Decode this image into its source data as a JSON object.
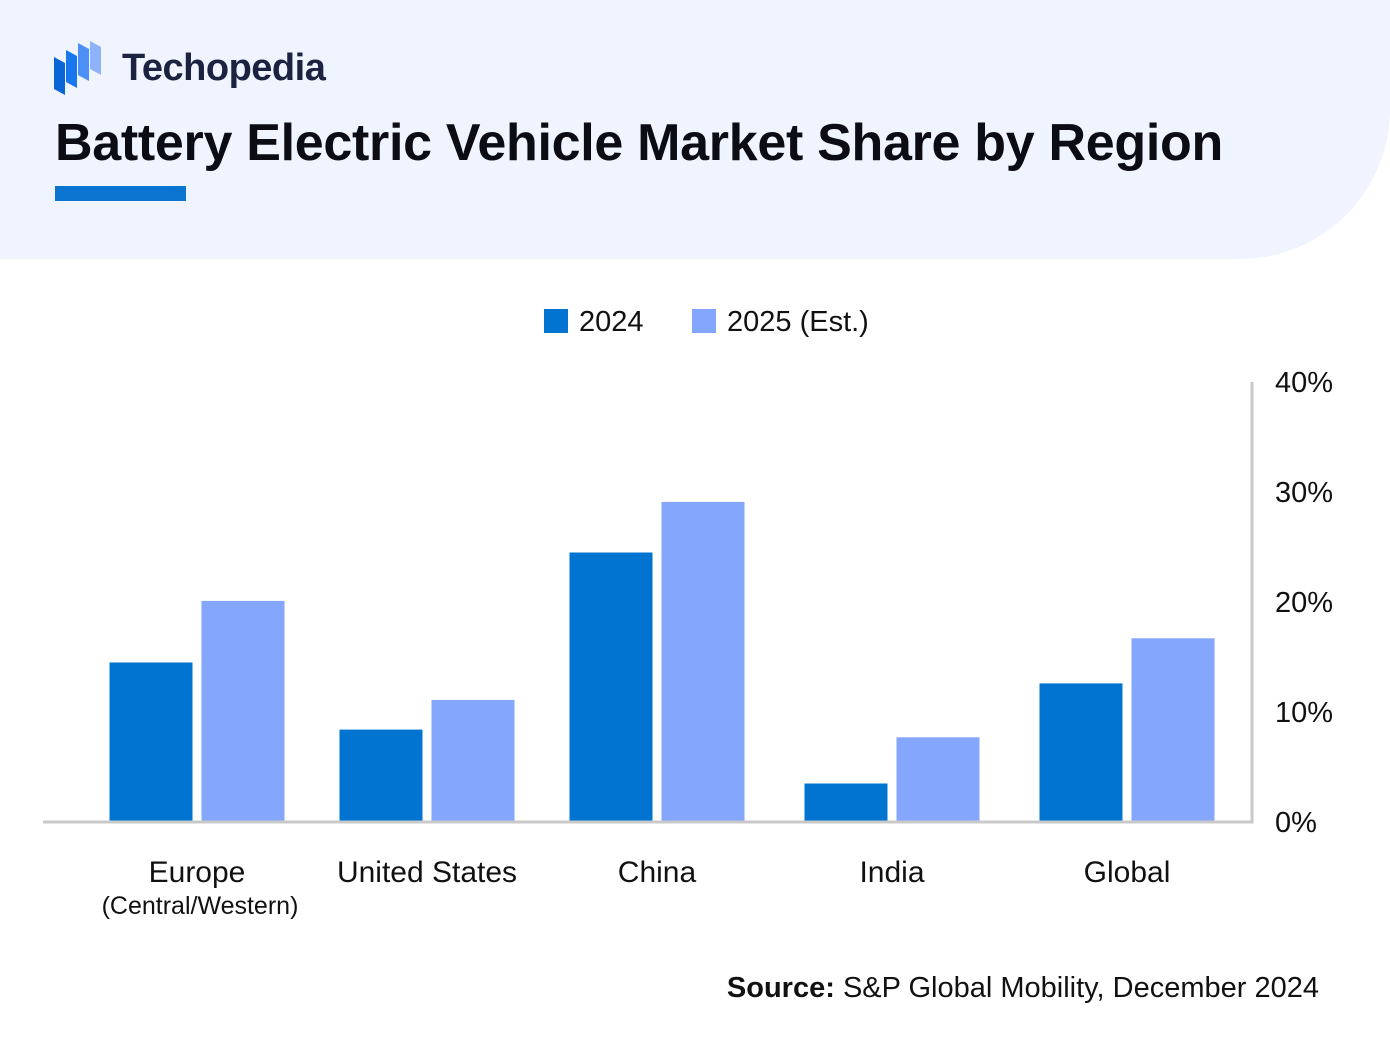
{
  "brand": {
    "name": "Techopedia",
    "accent_color": "#0a74d0",
    "logo_icon": "techopedia-logo-icon"
  },
  "header": {
    "title": "Battery Electric Vehicle Market Share by Region"
  },
  "chart_data": {
    "type": "bar",
    "title": "Battery Electric Vehicle Market Share by Region",
    "xlabel": "",
    "ylabel": "",
    "categories": [
      "Europe",
      "United States",
      "China",
      "India",
      "Global"
    ],
    "category_sublabels": [
      "(Central/Western)",
      "",
      "",
      "",
      ""
    ],
    "series": [
      {
        "name": "2024",
        "color": "#0074d0",
        "values": [
          14.5,
          8.4,
          24.5,
          3.5,
          12.6
        ]
      },
      {
        "name": "2025 (Est.)",
        "color": "#85a6fd",
        "values": [
          20.1,
          11.1,
          29.1,
          7.7,
          16.7
        ]
      }
    ],
    "ylim": [
      0,
      40
    ],
    "yticks": [
      0,
      10,
      20,
      30,
      40
    ],
    "ytick_labels": [
      "0%",
      "10%",
      "20%",
      "30%",
      "40%"
    ],
    "y_axis_side": "right",
    "grid": false,
    "legend_position": "top-center"
  },
  "footer": {
    "source_label": "Source:",
    "source_text": "S&P Global Mobility, December 2024"
  }
}
